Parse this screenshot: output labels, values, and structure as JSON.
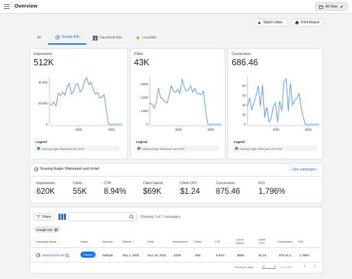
{
  "app": {
    "title": "Overview",
    "date_range": "All Time",
    "edit_icon": "pencil-icon"
  },
  "actions": {
    "watch_video": "Watch Video",
    "print_report": "Print Report"
  },
  "tabs": [
    {
      "label": "All",
      "active": false
    },
    {
      "label": "Google Ads",
      "active": true,
      "icon": "google-icon"
    },
    {
      "label": "Facebook Ads",
      "active": false,
      "icon": "facebook-icon"
    },
    {
      "label": "LocalAds",
      "active": false,
      "icon": "localads-icon"
    }
  ],
  "metric_cards": [
    {
      "name": "Impressions",
      "value": "512K"
    },
    {
      "name": "Clicks",
      "value": "43K"
    },
    {
      "name": "Conversions",
      "value": "686.46"
    }
  ],
  "legend": {
    "title": "Legend",
    "entry": "Soaring Eagle Waterpark and Hotel"
  },
  "chart_data": [
    {
      "type": "line",
      "title": "Impressions",
      "x_ticks": [
        "2022",
        "2023"
      ],
      "y_ticks": [
        0,
        20000,
        40000
      ],
      "y_tick_labels": [
        "0",
        "20,000",
        "40,000"
      ],
      "ylim": [
        0,
        46000
      ],
      "xlim": [
        0,
        1
      ],
      "series": [
        {
          "name": "Soaring Eagle Waterpark and Hotel",
          "x": [
            0.0,
            0.03,
            0.06,
            0.09,
            0.12,
            0.15,
            0.18,
            0.21,
            0.24,
            0.27,
            0.3,
            0.33,
            0.36,
            0.39,
            0.42,
            0.45,
            0.48,
            0.51,
            0.54,
            0.57,
            0.6,
            0.63,
            0.66,
            0.69,
            0.72,
            0.75,
            0.78,
            0.81,
            0.84,
            0.87,
            0.9,
            0.93,
            0.96,
            1.0
          ],
          "y": [
            18000,
            19000,
            21000,
            17500,
            30000,
            27500,
            31000,
            28000,
            35000,
            39500,
            29000,
            31500,
            38000,
            39000,
            31000,
            33500,
            41000,
            44500,
            38000,
            40500,
            33000,
            29000,
            30500,
            25000,
            26000,
            28500,
            13500,
            0,
            0,
            0,
            0,
            0,
            0,
            0
          ]
        }
      ]
    },
    {
      "type": "line",
      "title": "Clicks",
      "x_ticks": [
        "2022",
        "2023"
      ],
      "y_ticks": [
        0,
        1000,
        2000,
        3000
      ],
      "y_tick_labels": [
        "0",
        "1,000",
        "2,000",
        "3,000"
      ],
      "ylim": [
        0,
        3600
      ],
      "xlim": [
        0,
        1
      ],
      "series": [
        {
          "name": "Soaring Eagle Waterpark and Hotel",
          "x": [
            0.0,
            0.03,
            0.06,
            0.09,
            0.12,
            0.15,
            0.18,
            0.21,
            0.24,
            0.27,
            0.3,
            0.33,
            0.36,
            0.39,
            0.42,
            0.45,
            0.48,
            0.51,
            0.54,
            0.57,
            0.6,
            0.63,
            0.66,
            0.69,
            0.72,
            0.75,
            0.78,
            0.81,
            0.84,
            0.87,
            0.9,
            0.93,
            0.96,
            1.0
          ],
          "y": [
            1600,
            1500,
            1200,
            1700,
            2700,
            2000,
            1900,
            1700,
            1600,
            2200,
            2900,
            2500,
            2400,
            2600,
            2300,
            3400,
            2800,
            2500,
            2600,
            2900,
            2400,
            2700,
            2300,
            2300,
            2200,
            2500,
            1000,
            0,
            0,
            0,
            0,
            0,
            0,
            0
          ]
        }
      ]
    },
    {
      "type": "line",
      "title": "Conversions",
      "x_ticks": [
        "2022",
        "2023"
      ],
      "y_ticks": [
        0,
        20,
        40,
        60,
        80
      ],
      "y_tick_labels": [
        "0",
        "20",
        "40",
        "60",
        "80"
      ],
      "ylim": [
        0,
        100
      ],
      "xlim": [
        0,
        1
      ],
      "series": [
        {
          "name": "Soaring Eagle Waterpark and Hotel",
          "x": [
            0.0,
            0.03,
            0.06,
            0.09,
            0.12,
            0.15,
            0.18,
            0.21,
            0.24,
            0.27,
            0.3,
            0.33,
            0.36,
            0.39,
            0.42,
            0.45,
            0.48,
            0.51,
            0.54,
            0.57,
            0.6,
            0.63,
            0.66,
            0.69,
            0.72,
            0.75,
            0.78,
            0.81,
            0.84,
            0.87,
            0.9,
            0.93,
            0.96,
            1.0
          ],
          "y": [
            37,
            55,
            30,
            45,
            60,
            80,
            38,
            82,
            15,
            35,
            5,
            12,
            35,
            45,
            5,
            48,
            28,
            90,
            95,
            28,
            85,
            40,
            50,
            55,
            65,
            35,
            15,
            0,
            0,
            0,
            0,
            0,
            0,
            0
          ]
        }
      ]
    }
  ],
  "summary": {
    "title": "Soaring Eagle Waterpark and Hotel",
    "see_campaigns": "See campaigns",
    "stats": [
      {
        "label": "Impressions",
        "value": "620K"
      },
      {
        "label": "Clicks",
        "value": "55K"
      },
      {
        "label": "CTR",
        "value": "8.94%"
      },
      {
        "label": "Client Spend",
        "value": "$69K"
      },
      {
        "label": "Client CPC",
        "value": "$1.24"
      },
      {
        "label": "Conversions",
        "value": "875.46"
      },
      {
        "label": "ROI",
        "value": "1,796%"
      }
    ]
  },
  "table": {
    "filters_label": "Filters",
    "search_placeholder": "",
    "showing": "Showing 1 of 7 campaigns",
    "chip": "Google Ads",
    "headers": {
      "campaign": "Campaign Name",
      "status": "Status",
      "network": "Network",
      "started": "Started",
      "ends": "Ends",
      "impressions": "Impressions",
      "clicks": "Clicks",
      "ctr": "CTR",
      "client_spend_1": "Client",
      "client_spend_2": "Spend",
      "client_cpc_1": "Client",
      "client_cpc_2": "CPC",
      "conversions": "Conversions",
      "roi": "ROI"
    },
    "row": {
      "campaign": "Waterpark/Hotel",
      "status": "Paused",
      "network": "Multiple",
      "started": "Sep 1, 2020",
      "ends": "Nov 18, 2022",
      "impressions": "620K",
      "clicks": "55K",
      "ctr": "8.94%",
      "client_spend": "$69K",
      "client_cpc": "$1.24",
      "conversions": "875.46",
      "roi": "1,796%"
    },
    "pagination": {
      "items_label": "Items per page:",
      "page_size": "10",
      "range": "1 – 1 of 1"
    }
  },
  "colors": {
    "accent": "#1a73e8",
    "line": "#4a90e2"
  }
}
